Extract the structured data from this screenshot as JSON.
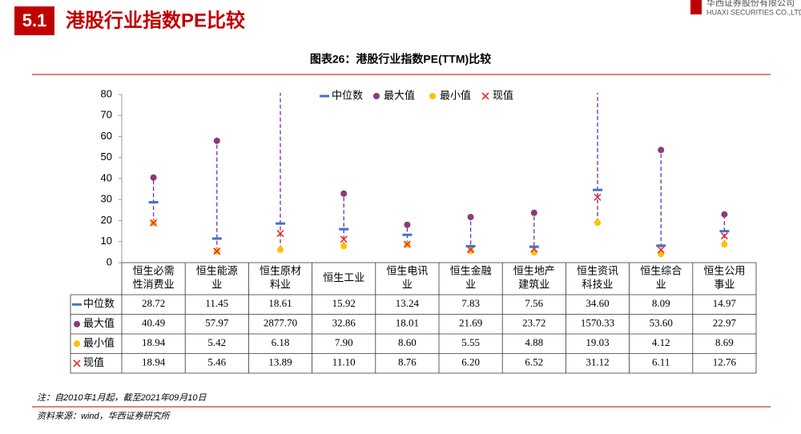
{
  "header": {
    "section": "5.1",
    "title": "港股行业指数PE比较",
    "logo_cn": "华西证券股份有限公司",
    "logo_en": "HUAXI SECURITIES CO.,LTD"
  },
  "chart_data": {
    "type": "range",
    "title": "图表26：港股行业指数PE(TTM)比较",
    "categories": [
      "恒生必需性消费业",
      "恒生能源业",
      "恒生原材料业",
      "恒生工业",
      "恒生电讯业",
      "恒生金融业",
      "恒生地产建筑业",
      "恒生资讯科技业",
      "恒生综合业",
      "恒生公用事业"
    ],
    "series": [
      {
        "name": "中位数",
        "color": "#4472c4",
        "marker": "dash",
        "values": [
          28.72,
          11.45,
          18.61,
          15.92,
          13.24,
          7.83,
          7.56,
          34.6,
          8.09,
          14.97
        ],
        "value_labels": [
          "28.72",
          "11.45",
          "18.61",
          "15.92",
          "13.24",
          "7.83",
          "7.56",
          "34.60",
          "8.09",
          "14.97"
        ]
      },
      {
        "name": "最大值",
        "color": "#8b3a7a",
        "marker": "circle",
        "values": [
          40.49,
          57.97,
          2877.7,
          32.86,
          18.01,
          21.69,
          23.72,
          1570.33,
          53.6,
          22.97
        ],
        "value_labels": [
          "40.49",
          "57.97",
          "2877.70",
          "32.86",
          "18.01",
          "21.69",
          "23.72",
          "1570.33",
          "53.60",
          "22.97"
        ]
      },
      {
        "name": "最小值",
        "color": "#ffc000",
        "marker": "circle",
        "values": [
          18.94,
          5.42,
          6.18,
          7.9,
          8.6,
          5.55,
          4.88,
          19.03,
          4.12,
          8.69
        ],
        "value_labels": [
          "18.94",
          "5.42",
          "6.18",
          "7.90",
          "8.60",
          "5.55",
          "4.88",
          "19.03",
          "4.12",
          "8.69"
        ]
      },
      {
        "name": "现值",
        "color": "#e8312f",
        "marker": "x",
        "values": [
          18.94,
          5.46,
          13.89,
          11.1,
          8.76,
          6.2,
          6.52,
          31.12,
          6.11,
          12.76
        ],
        "value_labels": [
          "18.94",
          "5.46",
          "13.89",
          "11.10",
          "8.76",
          "6.20",
          "6.52",
          "31.12",
          "6.11",
          "12.76"
        ]
      }
    ],
    "range_color": "#7030a0",
    "ylim": [
      0,
      80
    ],
    "yticks": [
      0,
      10,
      20,
      30,
      40,
      50,
      60,
      70,
      80
    ],
    "note": "注：自2010年1月起，截至2021年09月10日",
    "source": "资料来源：wind，华西证券研究所"
  }
}
